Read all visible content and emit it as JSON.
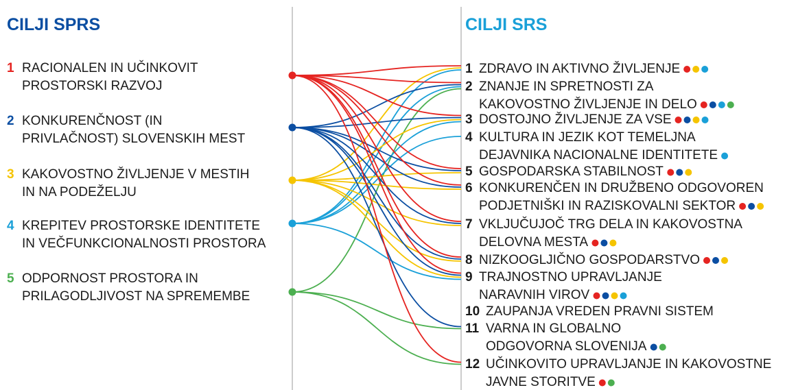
{
  "left": {
    "title": "CILJI SPRS",
    "goals": [
      {
        "number": "1",
        "color": "#e52421",
        "lines": [
          "RACIONALEN IN UČINKOVIT",
          "PROSTORSKI RAZVOJ"
        ]
      },
      {
        "number": "2",
        "color": "#0b4ea2",
        "lines": [
          "KONKURENČNOST (IN",
          "PRIVLAČNOST) SLOVENSKIH MEST"
        ]
      },
      {
        "number": "3",
        "color": "#f5c400",
        "lines": [
          "KAKOVOSTNO ŽIVLJENJE V MESTIH",
          "IN NA PODEŽELJU"
        ]
      },
      {
        "number": "4",
        "color": "#1aa0d8",
        "lines": [
          "KREPITEV PROSTORSKE IDENTITETE",
          "IN VEČFUNKCIONALNOSTI PROSTORA"
        ]
      },
      {
        "number": "5",
        "color": "#4caf50",
        "lines": [
          "ODPORNOST PROSTORA IN",
          "PRILAGODLJIVOST NA SPREMEMBE"
        ]
      }
    ]
  },
  "right": {
    "title": "CILJI SRS",
    "goals": [
      {
        "number": "1",
        "lines": [
          "ZDRAVO IN AKTIVNO ŽIVLJENJE"
        ],
        "sources": [
          1,
          3,
          4
        ]
      },
      {
        "number": "2",
        "lines": [
          "ZNANJE IN SPRETNOSTI ZA",
          "KAKOVOSTNO ŽIVLJENJE IN DELO"
        ],
        "sources": [
          1,
          2,
          4,
          5
        ]
      },
      {
        "number": "3",
        "lines": [
          "DOSTOJNO ŽIVLJENJE ZA VSE"
        ],
        "sources": [
          1,
          2,
          3,
          4
        ]
      },
      {
        "number": "4",
        "lines": [
          "KULTURA IN JEZIK KOT TEMELJNA",
          "DEJAVNIKA NACIONALNE IDENTITETE"
        ],
        "sources": [
          4
        ]
      },
      {
        "number": "5",
        "lines": [
          "GOSPODARSKA STABILNOST"
        ],
        "sources": [
          1,
          2,
          3
        ]
      },
      {
        "number": "6",
        "lines": [
          "KONKURENČEN IN DRUŽBENO ODGOVOREN",
          "PODJETNIŠKI IN RAZISKOVALNI SEKTOR"
        ],
        "sources": [
          1,
          2,
          3
        ]
      },
      {
        "number": "7",
        "lines": [
          "VKLJUČUJOČ TRG DELA IN KAKOVOSTNA",
          "DELOVNA MESTA"
        ],
        "sources": [
          1,
          2,
          3
        ]
      },
      {
        "number": "8",
        "lines": [
          "NIZKOOGLJIČNO GOSPODARSTVO"
        ],
        "sources": [
          1,
          2,
          3
        ]
      },
      {
        "number": "9",
        "lines": [
          "TRAJNOSTNO UPRAVLJANJE",
          "NARAVNIH VIROV"
        ],
        "sources": [
          1,
          2,
          3,
          4
        ]
      },
      {
        "number": "10",
        "lines": [
          "ZAUPANJA VREDEN PRAVNI SISTEM"
        ],
        "sources": []
      },
      {
        "number": "11",
        "lines": [
          "VARNA IN GLOBALNO",
          "ODGOVORNA SLOVENIJA"
        ],
        "sources": [
          2,
          5
        ]
      },
      {
        "number": "12",
        "lines": [
          "UČINKOVITO UPRAVLJANJE IN KAKOVOSTNE",
          "JAVNE STORITVE"
        ],
        "sources": [
          1,
          5
        ]
      }
    ]
  }
}
